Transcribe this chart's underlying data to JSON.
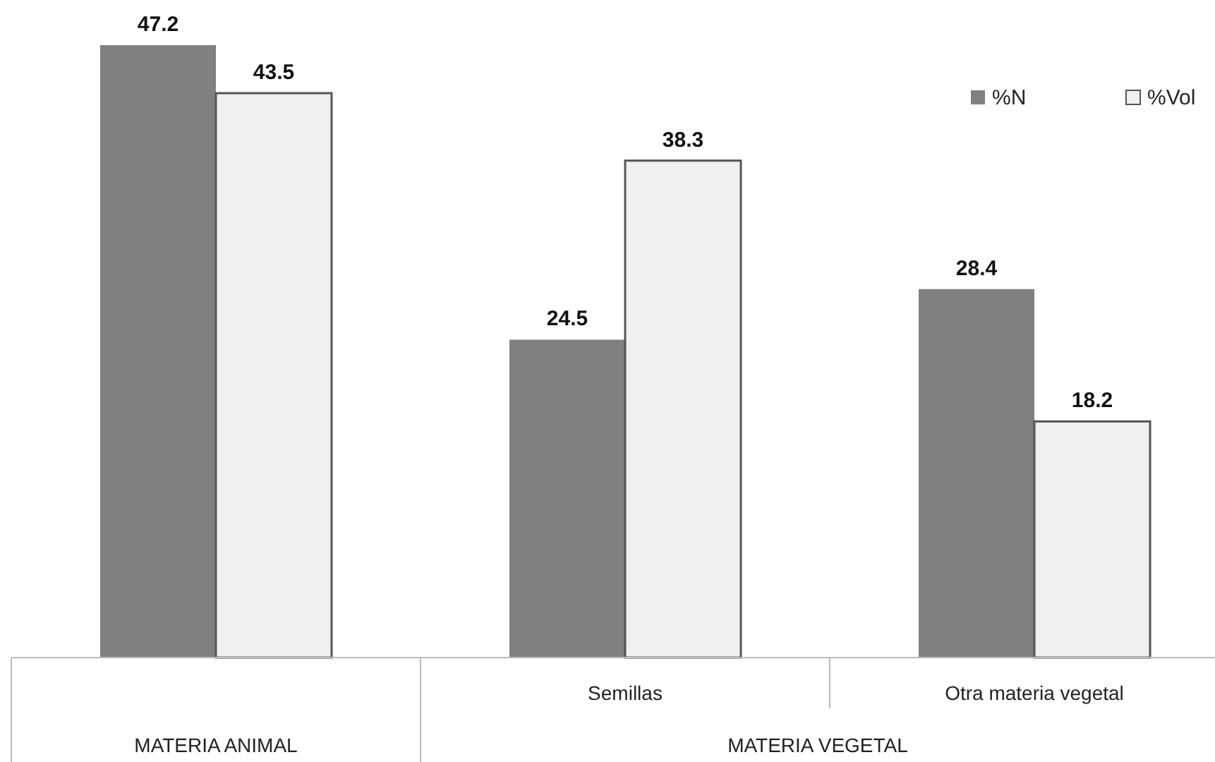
{
  "chart_data": {
    "type": "bar",
    "categories": [
      null,
      "Semillas",
      "Otra materia vegetal"
    ],
    "series": [
      {
        "name": "%N",
        "color": "#808080",
        "values": [
          47.2,
          24.5,
          28.4
        ]
      },
      {
        "name": "%Vol",
        "color": "#f0f0f0",
        "values": [
          43.5,
          38.3,
          18.2
        ]
      }
    ],
    "data_labels": true,
    "legend": "top right",
    "grid": false,
    "annotations": [
      "MATERIA ANIMAL",
      "MATERIA VEGETAL"
    ]
  }
}
